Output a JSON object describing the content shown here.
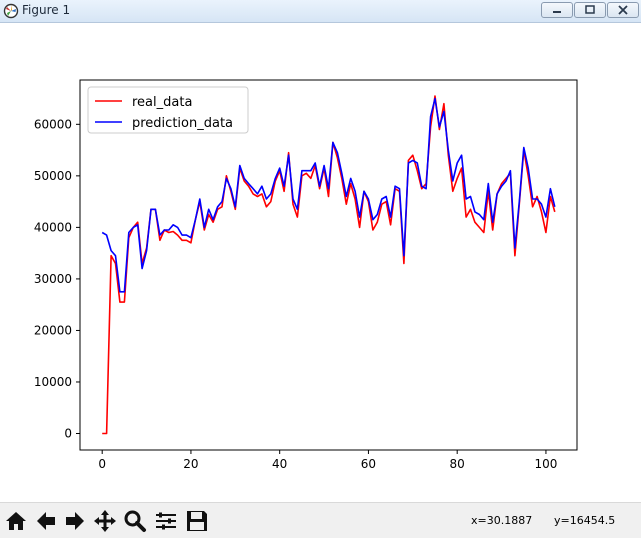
{
  "window": {
    "title": "Figure 1",
    "icons": [
      "app-icon",
      "minimize-icon",
      "maximize-icon",
      "close-icon"
    ]
  },
  "toolbar": {
    "tools": [
      "home-icon",
      "back-arrow-icon",
      "forward-arrow-icon",
      "pan-icon",
      "zoom-icon",
      "subplots-icon",
      "save-icon"
    ],
    "x_readout": "x=30.1887",
    "y_readout": "y=16454.5"
  },
  "chart_data": {
    "type": "line",
    "title": "",
    "xlabel": "",
    "ylabel": "",
    "xlim": [
      -5,
      107
    ],
    "ylim": [
      -3200,
      68600
    ],
    "xticks": [
      0,
      20,
      40,
      60,
      80,
      100
    ],
    "yticks": [
      0,
      10000,
      20000,
      30000,
      40000,
      50000,
      60000
    ],
    "legend_position": "upper-left",
    "series": [
      {
        "name": "real_data",
        "color": "#ff0000",
        "values": [
          0,
          0,
          34500,
          33000,
          25500,
          25500,
          38000,
          40000,
          41000,
          33000,
          36000,
          43500,
          43500,
          37500,
          39500,
          39000,
          39200,
          38500,
          37500,
          37500,
          37000,
          41500,
          45000,
          39500,
          42500,
          41000,
          43500,
          44000,
          50000,
          47000,
          43500,
          51500,
          49000,
          48000,
          46500,
          46000,
          46500,
          44000,
          45000,
          49000,
          51000,
          47000,
          54500,
          44500,
          42000,
          50000,
          50500,
          49500,
          52000,
          47500,
          51500,
          46000,
          56500,
          53500,
          49500,
          44500,
          48500,
          45500,
          40000,
          47000,
          45000,
          39500,
          41000,
          44500,
          45000,
          40500,
          47500,
          47000,
          33000,
          53000,
          54000,
          51000,
          47500,
          48500,
          59500,
          65500,
          59000,
          64000,
          54000,
          47000,
          49500,
          51500,
          42000,
          43500,
          41000,
          40000,
          39000,
          47000,
          39500,
          46500,
          48500,
          49500,
          50500,
          34500,
          44500,
          55000,
          50000,
          44000,
          46000,
          43000,
          39000,
          46000,
          43000
        ]
      },
      {
        "name": "prediction_data",
        "color": "#0000ff",
        "values": [
          39000,
          38500,
          35500,
          34500,
          27500,
          27500,
          39000,
          40000,
          40500,
          32000,
          35500,
          43500,
          43500,
          38500,
          39500,
          39500,
          40500,
          40000,
          38500,
          38500,
          38000,
          41500,
          45500,
          40000,
          43500,
          41500,
          44000,
          45000,
          49500,
          47500,
          44000,
          52000,
          49500,
          48500,
          47500,
          46500,
          48000,
          45500,
          46500,
          49500,
          51500,
          48000,
          54000,
          45500,
          43500,
          51000,
          51000,
          51000,
          52500,
          48000,
          52000,
          47500,
          56500,
          54500,
          50500,
          46000,
          49500,
          47000,
          42000,
          47000,
          45500,
          41500,
          42500,
          45500,
          46000,
          42000,
          48000,
          47500,
          34500,
          52500,
          53000,
          52500,
          48000,
          47500,
          61500,
          65000,
          59500,
          62500,
          55000,
          49000,
          52500,
          54000,
          45500,
          46000,
          43000,
          42500,
          41500,
          48500,
          41000,
          46500,
          48000,
          49000,
          51000,
          36000,
          45000,
          55500,
          51500,
          45500,
          45500,
          44500,
          42000,
          47500,
          44000
        ]
      }
    ]
  }
}
